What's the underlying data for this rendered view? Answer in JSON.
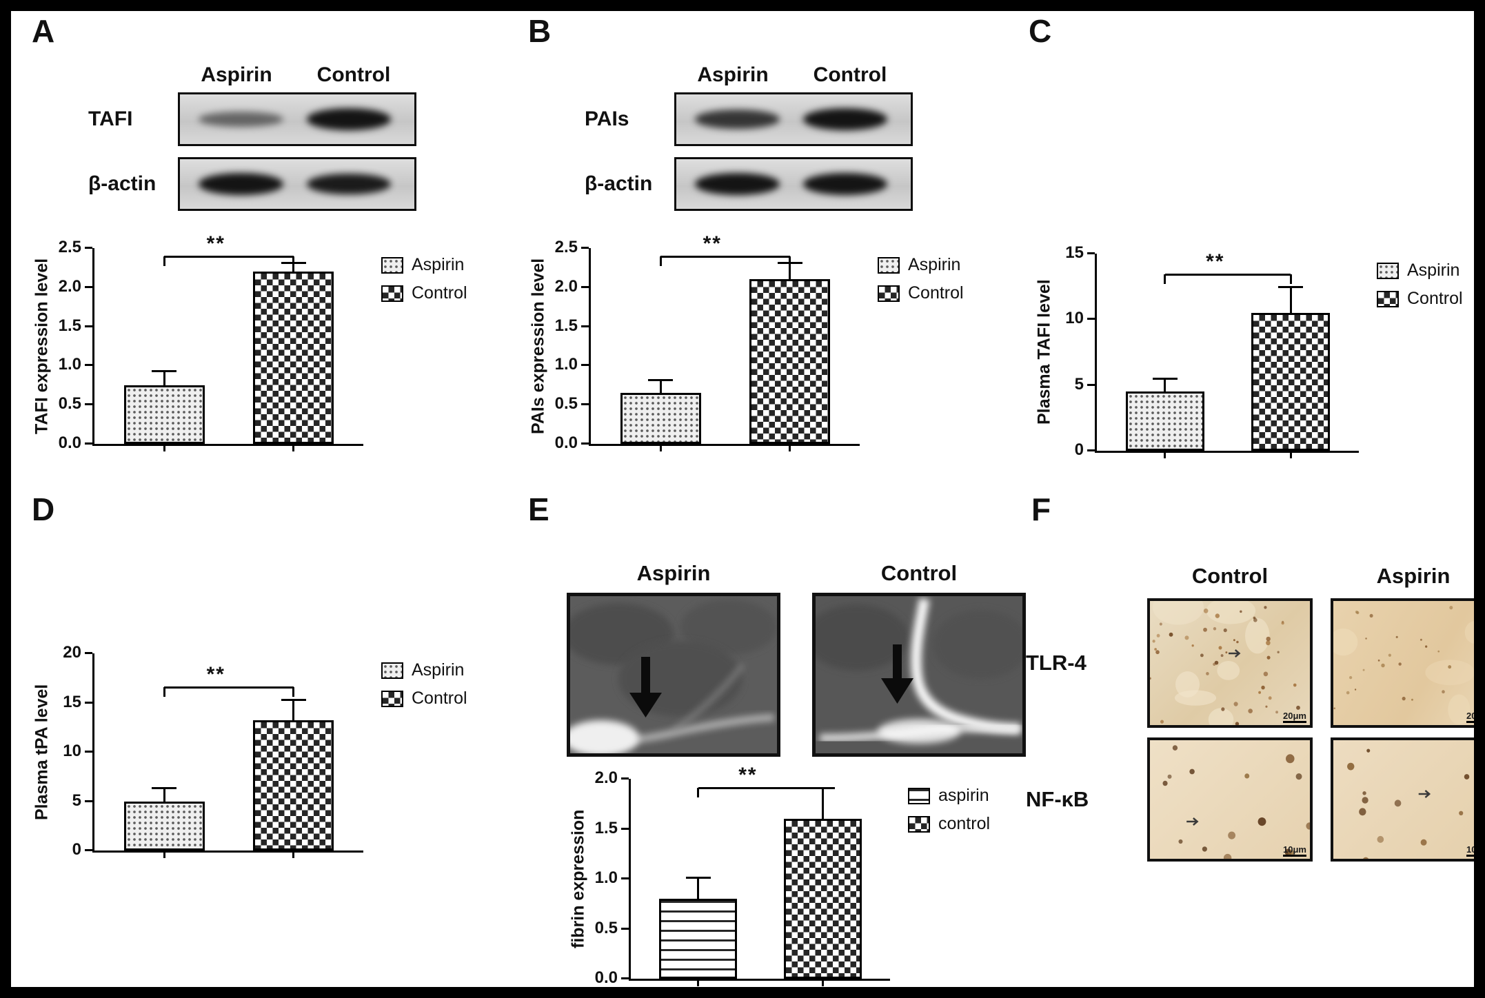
{
  "figure": {
    "background": "#ffffff",
    "frame_color": "#000000"
  },
  "panel_labels": {
    "A": "A",
    "B": "B",
    "C": "C",
    "D": "D",
    "E": "E",
    "F": "F"
  },
  "blots": [
    {
      "panel": "A",
      "col_labels": [
        "Aspirin",
        "Control"
      ],
      "rows": [
        {
          "label": "TAFI",
          "band_intensities": [
            0.4,
            1.0
          ]
        },
        {
          "label": "β-actin",
          "band_intensities": [
            1.0,
            0.95
          ]
        }
      ]
    },
    {
      "panel": "B",
      "col_labels": [
        "Aspirin",
        "Control"
      ],
      "rows": [
        {
          "label": "PAIs",
          "band_intensities": [
            0.75,
            1.0
          ]
        },
        {
          "label": "β-actin",
          "band_intensities": [
            1.0,
            1.0
          ]
        }
      ]
    }
  ],
  "chart_data": [
    {
      "panel": "A",
      "type": "bar",
      "ylabel": "TAFI expression level",
      "categories": [
        "Aspirin",
        "Control"
      ],
      "values": [
        0.75,
        2.2
      ],
      "errors": [
        0.17,
        0.1
      ],
      "ylim": [
        0,
        2.5
      ],
      "yticks": [
        "0.0",
        "0.5",
        "1.0",
        "1.5",
        "2.0",
        "2.5"
      ],
      "significance": "**",
      "grid": false,
      "legend_position": "right",
      "legend": [
        {
          "label": "Aspirin",
          "pattern": "dots"
        },
        {
          "label": "Control",
          "pattern": "checker"
        }
      ]
    },
    {
      "panel": "B",
      "type": "bar",
      "ylabel": "PAIs expression level",
      "categories": [
        "Aspirin",
        "Control"
      ],
      "values": [
        0.65,
        2.1
      ],
      "errors": [
        0.15,
        0.2
      ],
      "ylim": [
        0,
        2.5
      ],
      "yticks": [
        "0.0",
        "0.5",
        "1.0",
        "1.5",
        "2.0",
        "2.5"
      ],
      "significance": "**",
      "grid": false,
      "legend_position": "right",
      "legend": [
        {
          "label": "Aspirin",
          "pattern": "dots"
        },
        {
          "label": "Control",
          "pattern": "checker"
        }
      ]
    },
    {
      "panel": "C",
      "type": "bar",
      "ylabel": "Plasma TAFI level",
      "categories": [
        "Aspirin",
        "Control"
      ],
      "values": [
        4.5,
        10.5
      ],
      "errors": [
        0.9,
        1.9
      ],
      "ylim": [
        0,
        15
      ],
      "yticks": [
        "0",
        "5",
        "10",
        "15"
      ],
      "significance": "**",
      "grid": false,
      "legend_position": "right",
      "legend": [
        {
          "label": "Aspirin",
          "pattern": "dots"
        },
        {
          "label": "Control",
          "pattern": "checker"
        }
      ]
    },
    {
      "panel": "D",
      "type": "bar",
      "ylabel": "Plasma tPA level",
      "categories": [
        "Aspirin",
        "Control"
      ],
      "values": [
        5.0,
        13.2
      ],
      "errors": [
        1.2,
        2.0
      ],
      "ylim": [
        0,
        20
      ],
      "yticks": [
        "0",
        "5",
        "10",
        "15",
        "20"
      ],
      "significance": "**",
      "grid": false,
      "legend_position": "right",
      "legend": [
        {
          "label": "Aspirin",
          "pattern": "dots"
        },
        {
          "label": "Control",
          "pattern": "checker"
        }
      ]
    },
    {
      "panel": "E",
      "type": "bar",
      "ylabel": "fibrin expression",
      "categories": [
        "aspirin",
        "control"
      ],
      "values": [
        0.8,
        1.6
      ],
      "errors": [
        0.2,
        0.3
      ],
      "ylim": [
        0,
        2.0
      ],
      "yticks": [
        "0.0",
        "0.5",
        "1.0",
        "1.5",
        "2.0"
      ],
      "significance": "**",
      "grid": false,
      "legend_position": "right",
      "legend": [
        {
          "label": "aspirin",
          "pattern": "hlines"
        },
        {
          "label": "control",
          "pattern": "checker"
        }
      ]
    }
  ],
  "panel_e": {
    "image_labels": [
      "Aspirin",
      "Control"
    ]
  },
  "panel_f": {
    "col_labels": [
      "Control",
      "Aspirin"
    ],
    "rows": [
      {
        "label": "TLR-4",
        "scale_bar": "20μm"
      },
      {
        "label": "NF-κB",
        "scale_bar": "10μm"
      }
    ]
  }
}
